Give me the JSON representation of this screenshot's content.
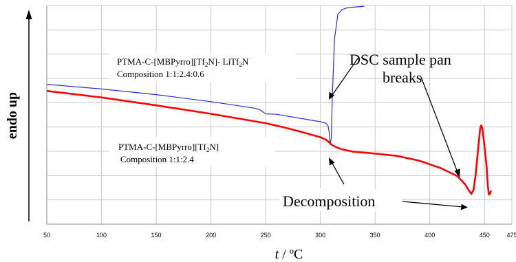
{
  "chart_data": {
    "type": "line",
    "xlabel_var": "t",
    "xlabel_unit": " / ºC",
    "ylabel": "endo up",
    "xlim": [
      50,
      475
    ],
    "x_ticks": [
      50,
      100,
      150,
      200,
      250,
      300,
      350,
      400,
      450,
      475
    ],
    "grid": true,
    "series": [
      {
        "color": "#2b2bd8",
        "points": [
          [
            50,
            101.0
          ],
          [
            100,
            96.0
          ],
          [
            150,
            90.0
          ],
          [
            200,
            82.5
          ],
          [
            240,
            75.5
          ],
          [
            245,
            73.5
          ],
          [
            250,
            69.5
          ],
          [
            260,
            69.0
          ],
          [
            280,
            65.0
          ],
          [
            300,
            61.0
          ],
          [
            305,
            59.5
          ],
          [
            307,
            57.0
          ],
          [
            308,
            50.0
          ],
          [
            309,
            37.0
          ],
          [
            310,
            44.0
          ],
          [
            311,
            90.0
          ],
          [
            313,
            150.0
          ],
          [
            316,
            176.0
          ],
          [
            320,
            181.0
          ],
          [
            325,
            183.0
          ],
          [
            340,
            184.5
          ]
        ]
      },
      {
        "color": "#ff0000",
        "points": [
          [
            50,
            94.0
          ],
          [
            100,
            87.0
          ],
          [
            150,
            78.5
          ],
          [
            200,
            69.5
          ],
          [
            250,
            59.5
          ],
          [
            265,
            55.5
          ],
          [
            280,
            51.0
          ],
          [
            300,
            44.5
          ],
          [
            305,
            42.0
          ],
          [
            308,
            39.0
          ],
          [
            310,
            36.5
          ],
          [
            315,
            33.5
          ],
          [
            320,
            31.5
          ],
          [
            330,
            29.0
          ],
          [
            350,
            27.0
          ],
          [
            370,
            24.5
          ],
          [
            390,
            19.5
          ],
          [
            410,
            11.5
          ],
          [
            425,
            3.0
          ],
          [
            432,
            -5.5
          ],
          [
            436,
            -13.0
          ],
          [
            438,
            -16.0
          ],
          [
            440,
            -12.0
          ],
          [
            442,
            5.0
          ],
          [
            444,
            30.0
          ],
          [
            446,
            54.0
          ],
          [
            447,
            57.0
          ],
          [
            448,
            54.0
          ],
          [
            450,
            35.0
          ],
          [
            452,
            12.0
          ],
          [
            453,
            -7.0
          ],
          [
            454,
            -17.0
          ],
          [
            455,
            -16.0
          ],
          [
            456,
            -12.5
          ]
        ]
      }
    ],
    "annotations": {
      "pure_label_1": "PTMA-C-[MBPyrro][Tf",
      "pure_label_sub": "2",
      "pure_label_2": "N]",
      "pure_comp": "Composition 1:1:2.4",
      "li_label_1": "PTMA-C-[MBPyrro][Tf",
      "li_label_sub1": "2",
      "li_label_2": "N]- LiTf",
      "li_label_sub2": "2",
      "li_label_3": "N",
      "li_comp": "Composition 1:1:2.4:0.6",
      "breaks_1": "DSC sample pan",
      "breaks_2": "breaks",
      "decomp": "Decomposition"
    }
  }
}
